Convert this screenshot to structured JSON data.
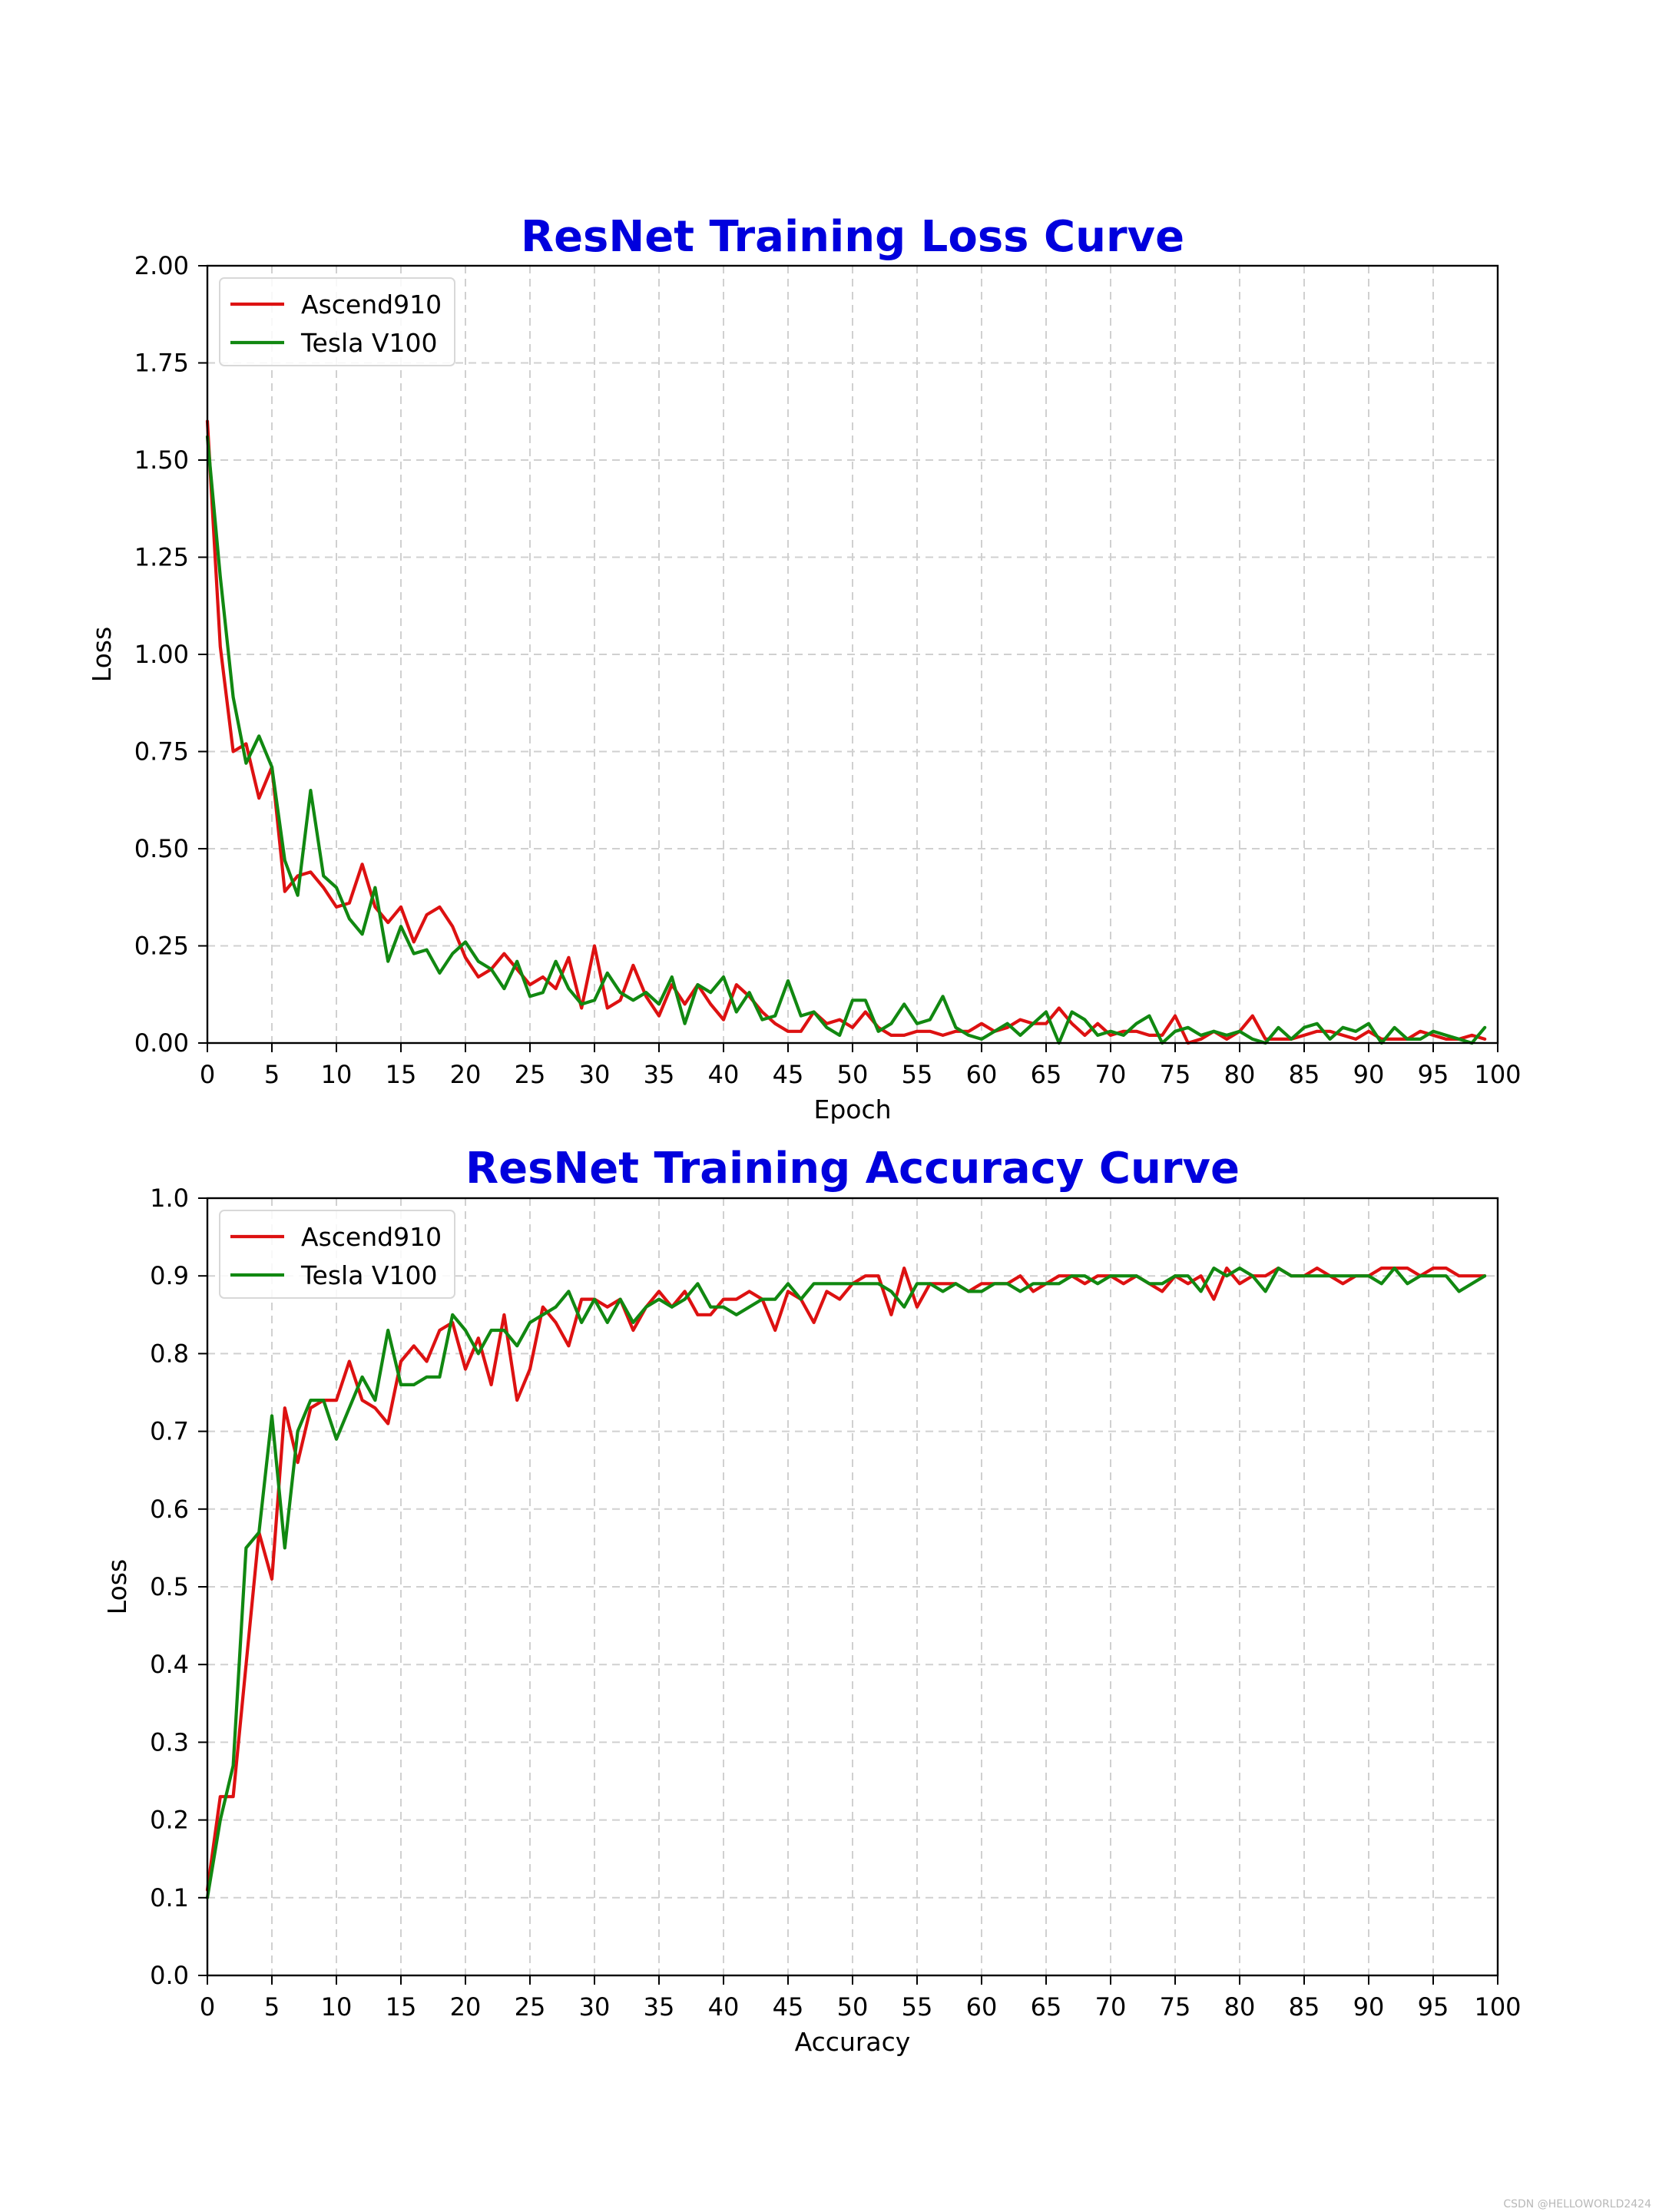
{
  "watermark": "CSDN @HELLOWORLD2424",
  "chart_data": [
    {
      "type": "line",
      "title": "ResNet Training Loss Curve",
      "xlabel": "Epoch",
      "ylabel": "Loss",
      "xlim": [
        0,
        100
      ],
      "ylim": [
        0,
        2.0
      ],
      "xticks": [
        0,
        5,
        10,
        15,
        20,
        25,
        30,
        35,
        40,
        45,
        50,
        55,
        60,
        65,
        70,
        75,
        80,
        85,
        90,
        95,
        100
      ],
      "yticks": [
        "0.00",
        "0.25",
        "0.50",
        "0.75",
        "1.00",
        "1.25",
        "1.50",
        "1.75",
        "2.00"
      ],
      "grid": true,
      "legend_position": "top-left",
      "x": [
        0,
        1,
        2,
        3,
        4,
        5,
        6,
        7,
        8,
        9,
        10,
        11,
        12,
        13,
        14,
        15,
        16,
        17,
        18,
        19,
        20,
        21,
        22,
        23,
        24,
        25,
        26,
        27,
        28,
        29,
        30,
        31,
        32,
        33,
        34,
        35,
        36,
        37,
        38,
        39,
        40,
        41,
        42,
        43,
        44,
        45,
        46,
        47,
        48,
        49,
        50,
        51,
        52,
        53,
        54,
        55,
        56,
        57,
        58,
        59,
        60,
        61,
        62,
        63,
        64,
        65,
        66,
        67,
        68,
        69,
        70,
        71,
        72,
        73,
        74,
        75,
        76,
        77,
        78,
        79,
        80,
        81,
        82,
        83,
        84,
        85,
        86,
        87,
        88,
        89,
        90,
        91,
        92,
        93,
        94,
        95,
        96,
        97,
        98,
        99
      ],
      "series": [
        {
          "name": "Ascend910",
          "color": "#dd1111",
          "values": [
            1.6,
            1.02,
            0.75,
            0.77,
            0.63,
            0.71,
            0.39,
            0.43,
            0.44,
            0.4,
            0.35,
            0.36,
            0.46,
            0.35,
            0.31,
            0.35,
            0.26,
            0.33,
            0.35,
            0.3,
            0.22,
            0.17,
            0.19,
            0.23,
            0.19,
            0.15,
            0.17,
            0.14,
            0.22,
            0.09,
            0.25,
            0.09,
            0.11,
            0.2,
            0.12,
            0.07,
            0.15,
            0.1,
            0.15,
            0.1,
            0.06,
            0.15,
            0.12,
            0.08,
            0.05,
            0.03,
            0.03,
            0.08,
            0.05,
            0.06,
            0.04,
            0.08,
            0.04,
            0.02,
            0.02,
            0.03,
            0.03,
            0.02,
            0.03,
            0.03,
            0.05,
            0.03,
            0.04,
            0.06,
            0.05,
            0.05,
            0.09,
            0.05,
            0.02,
            0.05,
            0.02,
            0.03,
            0.03,
            0.02,
            0.02,
            0.07,
            0.0,
            0.01,
            0.03,
            0.01,
            0.03,
            0.07,
            0.01,
            0.01,
            0.01,
            0.02,
            0.03,
            0.03,
            0.02,
            0.01,
            0.03,
            0.01,
            0.01,
            0.01,
            0.03,
            0.02,
            0.01,
            0.01,
            0.02,
            0.01
          ]
        },
        {
          "name": "Tesla V100",
          "color": "#118811",
          "values": [
            1.56,
            1.2,
            0.89,
            0.72,
            0.79,
            0.71,
            0.47,
            0.38,
            0.65,
            0.43,
            0.4,
            0.32,
            0.28,
            0.4,
            0.21,
            0.3,
            0.23,
            0.24,
            0.18,
            0.23,
            0.26,
            0.21,
            0.19,
            0.14,
            0.21,
            0.12,
            0.13,
            0.21,
            0.14,
            0.1,
            0.11,
            0.18,
            0.13,
            0.11,
            0.13,
            0.1,
            0.17,
            0.05,
            0.15,
            0.13,
            0.17,
            0.08,
            0.13,
            0.06,
            0.07,
            0.16,
            0.07,
            0.08,
            0.04,
            0.02,
            0.11,
            0.11,
            0.03,
            0.05,
            0.1,
            0.05,
            0.06,
            0.12,
            0.04,
            0.02,
            0.01,
            0.03,
            0.05,
            0.02,
            0.05,
            0.08,
            0.0,
            0.08,
            0.06,
            0.02,
            0.03,
            0.02,
            0.05,
            0.07,
            0.0,
            0.03,
            0.04,
            0.02,
            0.03,
            0.02,
            0.03,
            0.01,
            0.0,
            0.04,
            0.01,
            0.04,
            0.05,
            0.01,
            0.04,
            0.03,
            0.05,
            0.0,
            0.04,
            0.01,
            0.01,
            0.03,
            0.02,
            0.01,
            0.0,
            0.04
          ]
        }
      ]
    },
    {
      "type": "line",
      "title": "ResNet Training Accuracy Curve",
      "xlabel": "Accuracy",
      "ylabel": "Loss",
      "xlim": [
        0,
        100
      ],
      "ylim": [
        0,
        1.0
      ],
      "xticks": [
        0,
        5,
        10,
        15,
        20,
        25,
        30,
        35,
        40,
        45,
        50,
        55,
        60,
        65,
        70,
        75,
        80,
        85,
        90,
        95,
        100
      ],
      "yticks": [
        "0.0",
        "0.1",
        "0.2",
        "0.3",
        "0.4",
        "0.5",
        "0.6",
        "0.7",
        "0.8",
        "0.9",
        "1.0"
      ],
      "grid": true,
      "legend_position": "top-left",
      "x": [
        0,
        1,
        2,
        3,
        4,
        5,
        6,
        7,
        8,
        9,
        10,
        11,
        12,
        13,
        14,
        15,
        16,
        17,
        18,
        19,
        20,
        21,
        22,
        23,
        24,
        25,
        26,
        27,
        28,
        29,
        30,
        31,
        32,
        33,
        34,
        35,
        36,
        37,
        38,
        39,
        40,
        41,
        42,
        43,
        44,
        45,
        46,
        47,
        48,
        49,
        50,
        51,
        52,
        53,
        54,
        55,
        56,
        57,
        58,
        59,
        60,
        61,
        62,
        63,
        64,
        65,
        66,
        67,
        68,
        69,
        70,
        71,
        72,
        73,
        74,
        75,
        76,
        77,
        78,
        79,
        80,
        81,
        82,
        83,
        84,
        85,
        86,
        87,
        88,
        89,
        90,
        91,
        92,
        93,
        94,
        95,
        96,
        97,
        98,
        99
      ],
      "series": [
        {
          "name": "Ascend910",
          "color": "#dd1111",
          "values": [
            0.11,
            0.23,
            0.23,
            0.4,
            0.57,
            0.51,
            0.73,
            0.66,
            0.73,
            0.74,
            0.74,
            0.79,
            0.74,
            0.73,
            0.71,
            0.79,
            0.81,
            0.79,
            0.83,
            0.84,
            0.78,
            0.82,
            0.76,
            0.85,
            0.74,
            0.78,
            0.86,
            0.84,
            0.81,
            0.87,
            0.87,
            0.86,
            0.87,
            0.83,
            0.86,
            0.88,
            0.86,
            0.88,
            0.85,
            0.85,
            0.87,
            0.87,
            0.88,
            0.87,
            0.83,
            0.88,
            0.87,
            0.84,
            0.88,
            0.87,
            0.89,
            0.9,
            0.9,
            0.85,
            0.91,
            0.86,
            0.89,
            0.89,
            0.89,
            0.88,
            0.89,
            0.89,
            0.89,
            0.9,
            0.88,
            0.89,
            0.9,
            0.9,
            0.89,
            0.9,
            0.9,
            0.89,
            0.9,
            0.89,
            0.88,
            0.9,
            0.89,
            0.9,
            0.87,
            0.91,
            0.89,
            0.9,
            0.9,
            0.91,
            0.9,
            0.9,
            0.91,
            0.9,
            0.89,
            0.9,
            0.9,
            0.91,
            0.91,
            0.91,
            0.9,
            0.91,
            0.91,
            0.9,
            0.9,
            0.9
          ]
        },
        {
          "name": "Tesla V100",
          "color": "#118811",
          "values": [
            0.1,
            0.2,
            0.27,
            0.55,
            0.57,
            0.72,
            0.55,
            0.7,
            0.74,
            0.74,
            0.69,
            0.73,
            0.77,
            0.74,
            0.83,
            0.76,
            0.76,
            0.77,
            0.77,
            0.85,
            0.83,
            0.8,
            0.83,
            0.83,
            0.81,
            0.84,
            0.85,
            0.86,
            0.88,
            0.84,
            0.87,
            0.84,
            0.87,
            0.84,
            0.86,
            0.87,
            0.86,
            0.87,
            0.89,
            0.86,
            0.86,
            0.85,
            0.86,
            0.87,
            0.87,
            0.89,
            0.87,
            0.89,
            0.89,
            0.89,
            0.89,
            0.89,
            0.89,
            0.88,
            0.86,
            0.89,
            0.89,
            0.88,
            0.89,
            0.88,
            0.88,
            0.89,
            0.89,
            0.88,
            0.89,
            0.89,
            0.89,
            0.9,
            0.9,
            0.89,
            0.9,
            0.9,
            0.9,
            0.89,
            0.89,
            0.9,
            0.9,
            0.88,
            0.91,
            0.9,
            0.91,
            0.9,
            0.88,
            0.91,
            0.9,
            0.9,
            0.9,
            0.9,
            0.9,
            0.9,
            0.9,
            0.89,
            0.91,
            0.89,
            0.9,
            0.9,
            0.9,
            0.88,
            0.89,
            0.9
          ]
        }
      ]
    }
  ]
}
